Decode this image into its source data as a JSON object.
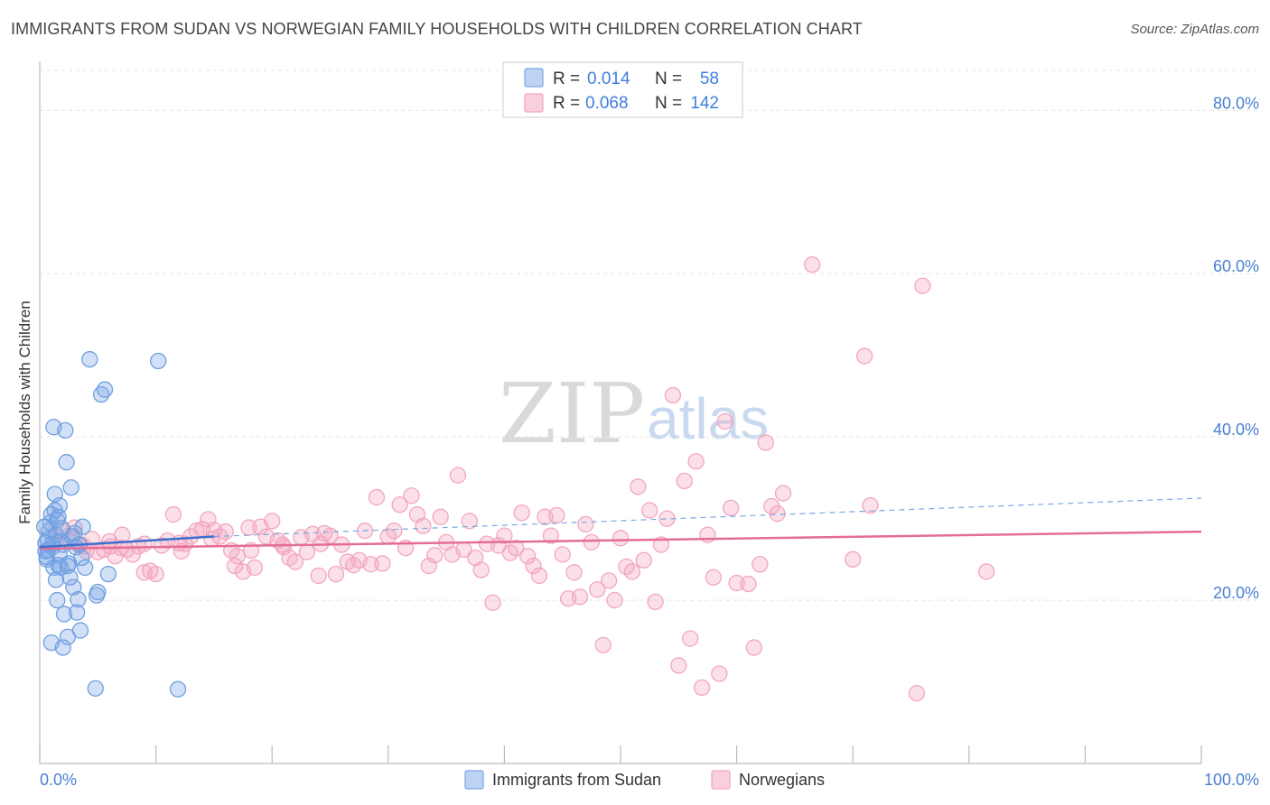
{
  "header": {
    "title": "IMMIGRANTS FROM SUDAN VS NORWEGIAN FAMILY HOUSEHOLDS WITH CHILDREN CORRELATION CHART",
    "source": "Source: ZipAtlas.com"
  },
  "watermark": {
    "part1": "ZIP",
    "part2": "atlas"
  },
  "legend": {
    "r_label": "R =",
    "n_label": "N =",
    "rows": [
      {
        "r": "0.014",
        "n": "58",
        "color": "#7aa7e6"
      },
      {
        "r": "0.068",
        "n": "142",
        "color": "#f3a6bf"
      }
    ]
  },
  "bottom_legend": [
    "Immigrants from Sudan",
    "Norwegians"
  ],
  "chart_data": {
    "type": "scatter",
    "title": "IMMIGRANTS FROM SUDAN VS NORWEGIAN FAMILY HOUSEHOLDS WITH CHILDREN CORRELATION CHART",
    "xlabel": "",
    "ylabel": "Family Households with Children",
    "xlim": [
      0,
      100
    ],
    "ylim": [
      0,
      86
    ],
    "x_ticks": [
      "0.0%",
      "100.0%"
    ],
    "y_ticks": [
      "20.0%",
      "40.0%",
      "60.0%",
      "80.0%"
    ],
    "y_tick_values": [
      20,
      40,
      60,
      80
    ],
    "grid": true,
    "legend_position": "top-center",
    "series": [
      {
        "name": "Immigrants from Sudan",
        "color": "#7aa7e6",
        "r": 0.014,
        "n": 58,
        "trend": {
          "x0": 0,
          "y0": 26.5,
          "x1": 15,
          "y1": 27.8,
          "x2": 100,
          "y2": 32.5
        },
        "points": [
          [
            0.5,
            26.0
          ],
          [
            0.6,
            25.0
          ],
          [
            0.7,
            27.5
          ],
          [
            0.8,
            28.5
          ],
          [
            0.9,
            29.5
          ],
          [
            1.0,
            30.5
          ],
          [
            1.1,
            26.5
          ],
          [
            1.2,
            24.0
          ],
          [
            1.3,
            31.0
          ],
          [
            1.4,
            28.0
          ],
          [
            1.5,
            29.8
          ],
          [
            1.6,
            30.2
          ],
          [
            1.7,
            25.5
          ],
          [
            1.8,
            27.2
          ],
          [
            1.9,
            28.8
          ],
          [
            2.0,
            26.8
          ],
          [
            1.0,
            14.8
          ],
          [
            1.2,
            41.2
          ],
          [
            1.5,
            20.0
          ],
          [
            1.6,
            24.3
          ],
          [
            1.7,
            31.6
          ],
          [
            1.8,
            24.0
          ],
          [
            2.0,
            14.2
          ],
          [
            2.1,
            18.3
          ],
          [
            2.2,
            40.8
          ],
          [
            2.3,
            36.9
          ],
          [
            2.4,
            15.5
          ],
          [
            2.5,
            24.5
          ],
          [
            2.6,
            22.8
          ],
          [
            2.7,
            33.8
          ],
          [
            2.8,
            27.8
          ],
          [
            2.9,
            21.6
          ],
          [
            3.0,
            28.2
          ],
          [
            3.1,
            26.5
          ],
          [
            3.2,
            18.5
          ],
          [
            3.3,
            20.1
          ],
          [
            3.4,
            26.8
          ],
          [
            3.5,
            16.3
          ],
          [
            3.6,
            25.2
          ],
          [
            3.7,
            29.0
          ],
          [
            3.9,
            24.0
          ],
          [
            4.3,
            49.5
          ],
          [
            4.8,
            9.2
          ],
          [
            4.9,
            20.6
          ],
          [
            5.0,
            21.0
          ],
          [
            5.3,
            45.2
          ],
          [
            5.6,
            45.8
          ],
          [
            5.9,
            23.2
          ],
          [
            0.4,
            29.0
          ],
          [
            0.5,
            27.0
          ],
          [
            0.6,
            25.3
          ],
          [
            0.7,
            26.1
          ],
          [
            1.1,
            26.9
          ],
          [
            2.4,
            24.2
          ],
          [
            1.4,
            22.5
          ],
          [
            10.2,
            49.3
          ],
          [
            11.9,
            9.1
          ],
          [
            1.3,
            33.0
          ]
        ]
      },
      {
        "name": "Norwegians",
        "color": "#f3a6bf",
        "r": 0.068,
        "n": 142,
        "trend": {
          "x0": 0,
          "y0": 26.3,
          "x1": 100,
          "y1": 28.4
        },
        "points": [
          [
            1.5,
            27.6
          ],
          [
            2.0,
            28.5
          ],
          [
            2.5,
            27.9
          ],
          [
            3.0,
            28.9
          ],
          [
            3.5,
            26.8
          ],
          [
            4.0,
            26.0
          ],
          [
            4.5,
            27.5
          ],
          [
            5.0,
            25.9
          ],
          [
            5.5,
            26.2
          ],
          [
            6.0,
            27.2
          ],
          [
            6.5,
            25.4
          ],
          [
            7.0,
            26.4
          ],
          [
            7.5,
            26.2
          ],
          [
            8.0,
            25.6
          ],
          [
            8.5,
            26.6
          ],
          [
            9.0,
            26.9
          ],
          [
            9.5,
            23.6
          ],
          [
            10.0,
            23.2
          ],
          [
            10.5,
            26.7
          ],
          [
            11.0,
            27.3
          ],
          [
            11.5,
            30.5
          ],
          [
            12.0,
            27.0
          ],
          [
            12.5,
            26.9
          ],
          [
            13.0,
            27.8
          ],
          [
            13.5,
            28.5
          ],
          [
            14.0,
            28.7
          ],
          [
            14.5,
            29.9
          ],
          [
            15.0,
            28.6
          ],
          [
            15.5,
            27.8
          ],
          [
            16.0,
            28.4
          ],
          [
            16.5,
            26.1
          ],
          [
            17.0,
            25.4
          ],
          [
            17.5,
            23.5
          ],
          [
            18.0,
            28.9
          ],
          [
            18.5,
            24.0
          ],
          [
            19.0,
            29.0
          ],
          [
            19.5,
            27.8
          ],
          [
            20.0,
            29.7
          ],
          [
            20.5,
            27.3
          ],
          [
            21.0,
            26.5
          ],
          [
            21.5,
            25.2
          ],
          [
            22.0,
            24.7
          ],
          [
            22.5,
            27.7
          ],
          [
            23.0,
            25.9
          ],
          [
            23.5,
            28.1
          ],
          [
            24.0,
            23.0
          ],
          [
            24.5,
            28.2
          ],
          [
            25.0,
            27.9
          ],
          [
            25.5,
            23.2
          ],
          [
            26.0,
            26.8
          ],
          [
            26.5,
            24.7
          ],
          [
            27.0,
            24.3
          ],
          [
            27.5,
            24.9
          ],
          [
            28.0,
            28.5
          ],
          [
            28.5,
            24.4
          ],
          [
            29.0,
            32.6
          ],
          [
            29.5,
            24.5
          ],
          [
            30.0,
            27.8
          ],
          [
            30.5,
            28.5
          ],
          [
            31.0,
            31.7
          ],
          [
            31.5,
            26.4
          ],
          [
            32.0,
            32.8
          ],
          [
            32.5,
            30.5
          ],
          [
            33.0,
            29.1
          ],
          [
            33.5,
            24.2
          ],
          [
            34.0,
            25.5
          ],
          [
            34.5,
            30.2
          ],
          [
            35.0,
            27.1
          ],
          [
            35.5,
            25.6
          ],
          [
            36.0,
            35.3
          ],
          [
            36.5,
            26.2
          ],
          [
            37.0,
            29.7
          ],
          [
            37.5,
            25.2
          ],
          [
            38.0,
            23.7
          ],
          [
            38.5,
            26.9
          ],
          [
            39.0,
            19.7
          ],
          [
            39.5,
            26.7
          ],
          [
            40.0,
            27.9
          ],
          [
            40.5,
            25.8
          ],
          [
            41.0,
            26.4
          ],
          [
            41.5,
            30.7
          ],
          [
            42.0,
            25.4
          ],
          [
            42.5,
            24.2
          ],
          [
            43.0,
            23.0
          ],
          [
            43.5,
            30.2
          ],
          [
            44.0,
            27.9
          ],
          [
            44.5,
            30.4
          ],
          [
            45.0,
            25.6
          ],
          [
            45.5,
            20.2
          ],
          [
            46.0,
            23.4
          ],
          [
            46.5,
            20.4
          ],
          [
            47.0,
            29.3
          ],
          [
            47.5,
            27.1
          ],
          [
            48.0,
            21.3
          ],
          [
            48.5,
            14.5
          ],
          [
            49.0,
            22.4
          ],
          [
            49.5,
            20.0
          ],
          [
            50.0,
            27.6
          ],
          [
            50.5,
            24.1
          ],
          [
            51.0,
            23.5
          ],
          [
            51.5,
            33.9
          ],
          [
            52.0,
            24.9
          ],
          [
            52.5,
            31.0
          ],
          [
            53.0,
            19.8
          ],
          [
            53.5,
            26.8
          ],
          [
            54.0,
            30.0
          ],
          [
            54.5,
            45.1
          ],
          [
            55.0,
            12.0
          ],
          [
            55.5,
            34.6
          ],
          [
            56.0,
            15.3
          ],
          [
            56.5,
            37.0
          ],
          [
            57.0,
            9.3
          ],
          [
            57.5,
            28.0
          ],
          [
            58.0,
            22.8
          ],
          [
            58.5,
            11.0
          ],
          [
            59.0,
            41.9
          ],
          [
            59.5,
            31.3
          ],
          [
            60.0,
            22.1
          ],
          [
            61.0,
            22.0
          ],
          [
            61.5,
            14.2
          ],
          [
            62.0,
            24.4
          ],
          [
            62.5,
            39.3
          ],
          [
            63.0,
            31.5
          ],
          [
            63.5,
            30.6
          ],
          [
            64.0,
            33.1
          ],
          [
            66.5,
            61.1
          ],
          [
            70.0,
            25.0
          ],
          [
            71.5,
            31.6
          ],
          [
            75.5,
            8.6
          ],
          [
            76.0,
            58.5
          ],
          [
            81.5,
            23.5
          ],
          [
            71.0,
            49.9
          ],
          [
            9.0,
            23.4
          ],
          [
            14.8,
            27.5
          ],
          [
            7.1,
            28.0
          ],
          [
            3.8,
            26.6
          ],
          [
            6.1,
            26.6
          ],
          [
            18.2,
            26.1
          ],
          [
            20.9,
            26.8
          ],
          [
            24.2,
            26.9
          ],
          [
            12.2,
            26.0
          ],
          [
            16.8,
            24.2
          ]
        ]
      }
    ]
  }
}
